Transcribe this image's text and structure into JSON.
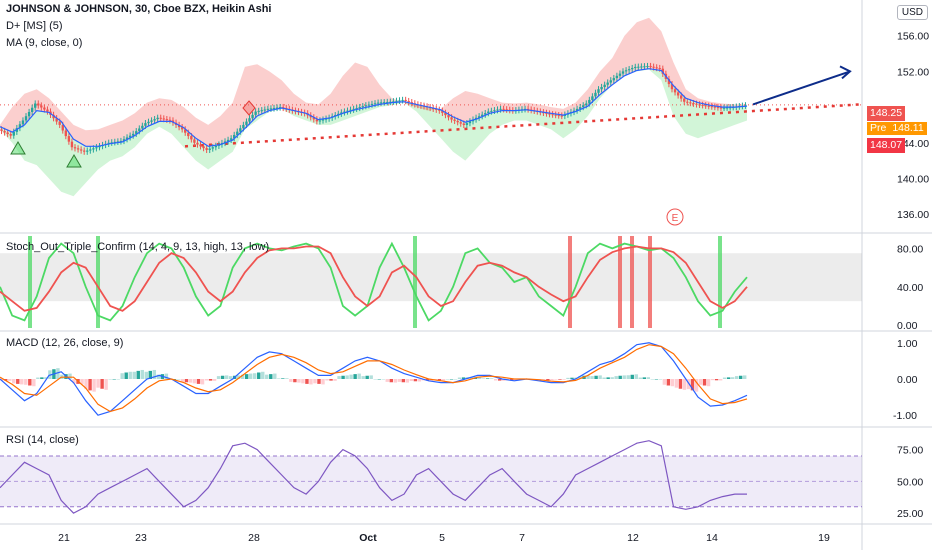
{
  "header": {
    "symbol_line": "JOHNSON & JOHNSON, 30, Cboe BZX, Heikin Ashi",
    "indicator1": "D+ [MS] (5)",
    "indicator2": "MA (9, close, 0)",
    "currency": "USD"
  },
  "price_tags": {
    "last": "148.25",
    "pre_label": "Pre",
    "pre_value": "148.11",
    "level": "148.07",
    "colors": {
      "last": "#ef5350",
      "pre": "#ff9800",
      "level": "#f23645"
    }
  },
  "earnings_marker": "E",
  "panes": {
    "stoch_label": "Stoch_Out_Triple_Confirm (14, 4, 9, 13, high, 13, low)",
    "macd_label": "MACD (12, 26, close, 9)",
    "rsi_label": "RSI (14, close)"
  },
  "chart_data": [
    {
      "type": "candlestick",
      "title": "JOHNSON & JOHNSON, 30, Cboe BZX, Heikin Ashi",
      "x_ticks": [
        "21",
        "23",
        "28",
        "Oct",
        "5",
        "7",
        "12",
        "14",
        "19"
      ],
      "y_ticks": [
        "140.00",
        "144.00",
        "148.00",
        "152.00",
        "156.00",
        "136.00"
      ],
      "ylim": [
        134.0,
        160.0
      ],
      "close_path": [
        145.5,
        144.8,
        146.5,
        148.4,
        147.5,
        146.0,
        143.5,
        143.0,
        143.5,
        144.0,
        144.2,
        145.0,
        146.2,
        146.8,
        146.5,
        145.5,
        144.0,
        143.2,
        143.8,
        144.5,
        146.0,
        147.5,
        147.8,
        148.0,
        147.6,
        147.3,
        146.4,
        146.8,
        147.4,
        147.8,
        148.2,
        148.5,
        148.6,
        148.8,
        148.3,
        148.0,
        147.6,
        146.6,
        146.0,
        146.8,
        147.5,
        147.8,
        147.6,
        147.8,
        147.5,
        147.2,
        147.0,
        147.6,
        148.4,
        150.0,
        151.0,
        152.0,
        152.5,
        152.6,
        152.3,
        150.0,
        148.6,
        148.3,
        148.1,
        147.9,
        148.0,
        148.2
      ],
      "ma_path": [
        145.8,
        145.2,
        146.0,
        147.6,
        147.4,
        146.4,
        144.4,
        143.6,
        143.6,
        143.9,
        144.1,
        144.8,
        145.8,
        146.4,
        146.4,
        145.7,
        144.5,
        143.6,
        143.8,
        144.3,
        145.6,
        147.0,
        147.6,
        147.9,
        147.6,
        147.3,
        146.6,
        146.8,
        147.3,
        147.7,
        148.0,
        148.3,
        148.5,
        148.6,
        148.3,
        148.0,
        147.7,
        146.9,
        146.3,
        146.7,
        147.3,
        147.6,
        147.6,
        147.7,
        147.5,
        147.3,
        147.1,
        147.5,
        148.1,
        149.4,
        150.5,
        151.5,
        152.1,
        152.3,
        152.1,
        150.4,
        149.0,
        148.5,
        148.2,
        148.0,
        148.0,
        148.1
      ],
      "dplus_upper": [
        146.0,
        148.0,
        149.5,
        150.0,
        149.0,
        147.5,
        146.0,
        145.4,
        145.5,
        146.0,
        146.5,
        147.3,
        148.5,
        149.0,
        148.8,
        148.0,
        146.8,
        146.0,
        147.0,
        148.5,
        152.5,
        152.8,
        152.0,
        151.0,
        149.5,
        148.5,
        148.3,
        149.5,
        151.5,
        153.0,
        152.5,
        150.5,
        149.0,
        148.5,
        148.0,
        147.6,
        147.8,
        149.0,
        149.8,
        149.5,
        149.0,
        148.5,
        148.4,
        148.5,
        148.3,
        148.0,
        147.8,
        148.5,
        150.0,
        152.0,
        153.5,
        156.0,
        157.5,
        158.0,
        156.5,
        153.0,
        150.0,
        149.0,
        148.6,
        148.4,
        148.3,
        148.3
      ],
      "dplus_lower": [
        145.5,
        144.0,
        142.0,
        141.5,
        140.0,
        138.5,
        138.0,
        139.5,
        141.0,
        142.0,
        142.5,
        143.5,
        145.0,
        145.8,
        145.0,
        143.5,
        142.0,
        141.0,
        142.0,
        143.0,
        145.5,
        146.5,
        147.5,
        147.8,
        147.0,
        146.5,
        146.0,
        146.0,
        146.5,
        147.0,
        147.5,
        148.0,
        148.2,
        148.5,
        147.5,
        146.0,
        144.5,
        143.0,
        142.0,
        143.5,
        145.0,
        146.0,
        146.5,
        146.5,
        146.0,
        145.5,
        144.5,
        145.5,
        147.0,
        149.0,
        150.5,
        151.5,
        152.0,
        152.2,
        151.0,
        147.0,
        145.0,
        144.5,
        145.0,
        145.5,
        146.0,
        146.5
      ],
      "support_line": {
        "from": 143.6,
        "to": 148.3
      },
      "projection_arrow": {
        "from": 148.3,
        "to": 152.0
      },
      "resistance_level": 148.25
    },
    {
      "type": "line",
      "title": "Stoch_Out_Triple_Confirm (14, 4, 9, 13, high, 13, low)",
      "y_ticks": [
        "80.00",
        "40.00",
        "0.00"
      ],
      "ylim": [
        -5,
        95
      ],
      "band": [
        25,
        75
      ],
      "series": [
        {
          "color": "#4cd964",
          "values": [
            40,
            10,
            5,
            30,
            70,
            85,
            75,
            40,
            10,
            5,
            20,
            50,
            75,
            85,
            80,
            60,
            30,
            10,
            20,
            60,
            80,
            85,
            80,
            78,
            82,
            85,
            80,
            60,
            20,
            10,
            20,
            60,
            85,
            60,
            30,
            5,
            15,
            40,
            75,
            80,
            65,
            60,
            45,
            50,
            30,
            20,
            10,
            40,
            75,
            85,
            80,
            85,
            82,
            78,
            80,
            70,
            50,
            25,
            10,
            15,
            35,
            50
          ]
        },
        {
          "color": "#ef5350",
          "values": [
            35,
            25,
            15,
            18,
            35,
            55,
            65,
            60,
            40,
            20,
            15,
            25,
            45,
            65,
            75,
            70,
            55,
            35,
            25,
            35,
            55,
            70,
            78,
            80,
            80,
            82,
            82,
            75,
            50,
            30,
            20,
            30,
            55,
            62,
            50,
            30,
            20,
            25,
            45,
            62,
            65,
            62,
            55,
            50,
            40,
            32,
            25,
            30,
            50,
            68,
            76,
            80,
            82,
            80,
            80,
            76,
            65,
            45,
            25,
            18,
            25,
            40
          ]
        }
      ]
    },
    {
      "type": "line",
      "title": "MACD (12, 26, close, 9)",
      "y_ticks": [
        "1.00",
        "0.00",
        "-1.00"
      ],
      "ylim": [
        -1.3,
        1.3
      ],
      "series": [
        {
          "color": "#2962ff",
          "values": [
            0.0,
            -0.3,
            -0.6,
            -0.4,
            0.1,
            0.2,
            -0.1,
            -0.6,
            -1.0,
            -0.9,
            -0.6,
            -0.3,
            0.0,
            0.1,
            0.0,
            -0.2,
            -0.4,
            -0.4,
            -0.2,
            0.0,
            0.3,
            0.6,
            0.75,
            0.7,
            0.5,
            0.3,
            0.1,
            0.1,
            0.3,
            0.5,
            0.6,
            0.5,
            0.3,
            0.15,
            0.05,
            -0.05,
            -0.1,
            -0.1,
            0.0,
            0.1,
            0.1,
            0.0,
            -0.05,
            0.0,
            -0.05,
            -0.1,
            -0.1,
            0.0,
            0.2,
            0.4,
            0.5,
            0.7,
            0.95,
            1.0,
            0.9,
            0.5,
            0.0,
            -0.5,
            -0.75,
            -0.72,
            -0.6,
            -0.45
          ]
        },
        {
          "color": "#ff6d00",
          "values": [
            0.05,
            -0.15,
            -0.4,
            -0.45,
            -0.2,
            0.05,
            0.05,
            -0.25,
            -0.7,
            -0.9,
            -0.8,
            -0.55,
            -0.25,
            -0.05,
            0.0,
            -0.1,
            -0.25,
            -0.35,
            -0.3,
            -0.1,
            0.15,
            0.4,
            0.6,
            0.68,
            0.6,
            0.45,
            0.25,
            0.15,
            0.2,
            0.35,
            0.5,
            0.5,
            0.4,
            0.25,
            0.12,
            0.0,
            -0.05,
            -0.1,
            -0.05,
            0.05,
            0.08,
            0.05,
            0.0,
            0.0,
            -0.02,
            -0.06,
            -0.08,
            -0.04,
            0.1,
            0.3,
            0.45,
            0.6,
            0.82,
            0.95,
            0.9,
            0.7,
            0.3,
            -0.15,
            -0.55,
            -0.68,
            -0.65,
            -0.55
          ]
        }
      ],
      "histogram": [
        -0.05,
        -0.15,
        -0.2,
        0.05,
        0.3,
        0.15,
        -0.15,
        -0.35,
        -0.3,
        0.0,
        0.2,
        0.25,
        0.25,
        0.15,
        0.0,
        -0.1,
        -0.15,
        -0.05,
        0.1,
        0.1,
        0.15,
        0.2,
        0.15,
        0.02,
        -0.1,
        -0.15,
        -0.15,
        -0.05,
        0.1,
        0.15,
        0.1,
        0.0,
        -0.1,
        -0.1,
        -0.07,
        -0.05,
        -0.05,
        0.0,
        0.05,
        0.05,
        0.02,
        -0.05,
        -0.05,
        0.0,
        -0.03,
        -0.04,
        -0.02,
        0.04,
        0.1,
        0.1,
        0.05,
        0.1,
        0.13,
        0.05,
        0.0,
        -0.2,
        -0.3,
        -0.35,
        -0.2,
        -0.04,
        0.05,
        0.1
      ]
    },
    {
      "type": "line",
      "title": "RSI (14, close)",
      "y_ticks": [
        "75.00",
        "50.00",
        "25.00"
      ],
      "ylim": [
        18,
        92
      ],
      "band": [
        30,
        70
      ],
      "series": [
        {
          "color": "#7e57c2",
          "values": [
            45,
            55,
            65,
            60,
            55,
            35,
            25,
            30,
            40,
            45,
            50,
            55,
            60,
            50,
            40,
            30,
            35,
            45,
            60,
            78,
            80,
            75,
            65,
            55,
            45,
            40,
            50,
            65,
            75,
            70,
            60,
            45,
            35,
            40,
            55,
            60,
            50,
            40,
            35,
            45,
            55,
            60,
            50,
            40,
            35,
            30,
            40,
            55,
            60,
            65,
            70,
            75,
            80,
            82,
            78,
            30,
            28,
            30,
            35,
            38,
            40,
            40
          ]
        }
      ]
    }
  ]
}
